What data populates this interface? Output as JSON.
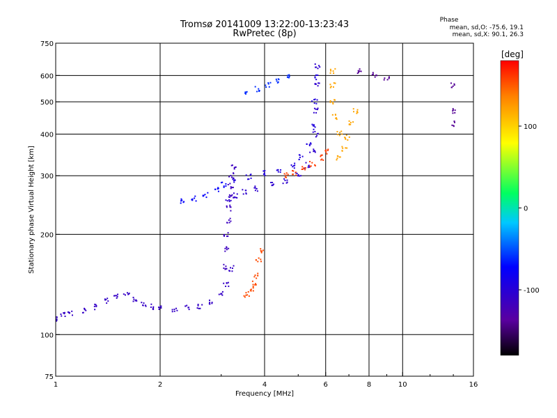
{
  "chart_data": {
    "type": "scatter",
    "title": "Tromsø 20141009 13:22:00-13:23:43",
    "subtitle": "RwPretec (8p)",
    "xlabel": "Frequency [MHz]",
    "ylabel": "Stationary phase Virtual Height [km]",
    "x_scale": "log",
    "y_scale": "log",
    "xlim": [
      1,
      16
    ],
    "ylim": [
      75,
      750
    ],
    "x_ticks": [
      1,
      2,
      4,
      6,
      8,
      10,
      16
    ],
    "y_ticks": [
      75,
      100,
      200,
      300,
      400,
      500,
      600,
      750
    ],
    "x_gridlines": [
      2,
      4,
      6,
      8,
      10
    ],
    "y_gridlines": [
      100,
      200,
      300,
      400,
      500,
      600
    ],
    "grid": true,
    "phase_box": {
      "heading": "Phase",
      "line1": "mean, sd,O: -75.6, 19.1",
      "line2": "mean, sd,X:  90.1, 26.3"
    },
    "colorbar": {
      "label": "[deg]",
      "range": [
        -180,
        180
      ],
      "ticks": [
        100,
        0,
        -100
      ],
      "tick_labels": [
        "100",
        "0",
        "-100"
      ]
    },
    "traces": [
      {
        "phase": -110,
        "points": [
          [
            1.0,
            112
          ],
          [
            1.05,
            115
          ],
          [
            1.1,
            116
          ],
          [
            1.2,
            118
          ],
          [
            1.3,
            121
          ],
          [
            1.4,
            126
          ],
          [
            1.5,
            131
          ],
          [
            1.6,
            133
          ],
          [
            1.7,
            128
          ],
          [
            1.8,
            124
          ],
          [
            1.9,
            121
          ],
          [
            2.0,
            120
          ],
          [
            2.2,
            119
          ],
          [
            2.4,
            120
          ],
          [
            2.6,
            122
          ],
          [
            2.8,
            125
          ],
          [
            3.0,
            132
          ],
          [
            3.1,
            142
          ],
          [
            3.2,
            158
          ]
        ]
      },
      {
        "phase": -105,
        "points": [
          [
            3.15,
            255
          ],
          [
            3.3,
            262
          ],
          [
            3.5,
            268
          ],
          [
            3.8,
            274
          ],
          [
            4.2,
            282
          ],
          [
            4.6,
            290
          ],
          [
            5.0,
            302
          ],
          [
            5.3,
            322
          ],
          [
            5.5,
            355
          ],
          [
            5.6,
            400
          ],
          [
            5.65,
            470
          ],
          [
            5.68,
            560
          ],
          [
            5.7,
            640
          ]
        ]
      },
      {
        "phase": -95,
        "points": [
          [
            3.3,
            290
          ],
          [
            3.6,
            298
          ],
          [
            4.0,
            305
          ],
          [
            4.4,
            312
          ],
          [
            4.8,
            322
          ],
          [
            5.1,
            340
          ],
          [
            5.35,
            372
          ],
          [
            5.5,
            420
          ],
          [
            5.58,
            500
          ],
          [
            5.62,
            590
          ]
        ]
      },
      {
        "phase": -115,
        "points": [
          [
            3.1,
            160
          ],
          [
            3.1,
            180
          ],
          [
            3.1,
            200
          ],
          [
            3.15,
            220
          ],
          [
            3.15,
            240
          ],
          [
            3.2,
            260
          ],
          [
            3.2,
            280
          ],
          [
            3.2,
            300
          ],
          [
            3.25,
            320
          ]
        ]
      },
      {
        "phase": -75,
        "points": [
          [
            2.3,
            252
          ],
          [
            2.5,
            256
          ],
          [
            2.7,
            262
          ],
          [
            2.9,
            272
          ],
          [
            3.05,
            282
          ]
        ]
      },
      {
        "phase": -60,
        "points": [
          [
            3.5,
            530
          ],
          [
            3.8,
            545
          ],
          [
            4.1,
            560
          ],
          [
            4.4,
            578
          ],
          [
            4.7,
            595
          ]
        ]
      },
      {
        "phase": 120,
        "points": [
          [
            6.3,
            620
          ],
          [
            6.3,
            560
          ],
          [
            6.3,
            500
          ],
          [
            6.4,
            450
          ],
          [
            6.6,
            400
          ],
          [
            6.8,
            360
          ],
          [
            6.5,
            340
          ],
          [
            6.9,
            390
          ],
          [
            7.1,
            430
          ],
          [
            7.3,
            470
          ]
        ]
      },
      {
        "phase": 160,
        "points": [
          [
            4.6,
            300
          ],
          [
            4.9,
            306
          ],
          [
            5.2,
            314
          ],
          [
            5.5,
            325
          ],
          [
            5.8,
            340
          ],
          [
            6.0,
            355
          ]
        ]
      },
      {
        "phase": 155,
        "points": [
          [
            3.55,
            132
          ],
          [
            3.65,
            136
          ],
          [
            3.75,
            142
          ],
          [
            3.8,
            150
          ],
          [
            3.85,
            168
          ],
          [
            3.9,
            178
          ]
        ]
      },
      {
        "phase": -140,
        "points": [
          [
            7.5,
            620
          ],
          [
            8.3,
            600
          ],
          [
            9.0,
            590
          ],
          [
            14.0,
            560
          ],
          [
            14.2,
            470
          ],
          [
            14.0,
            430
          ]
        ]
      }
    ]
  }
}
